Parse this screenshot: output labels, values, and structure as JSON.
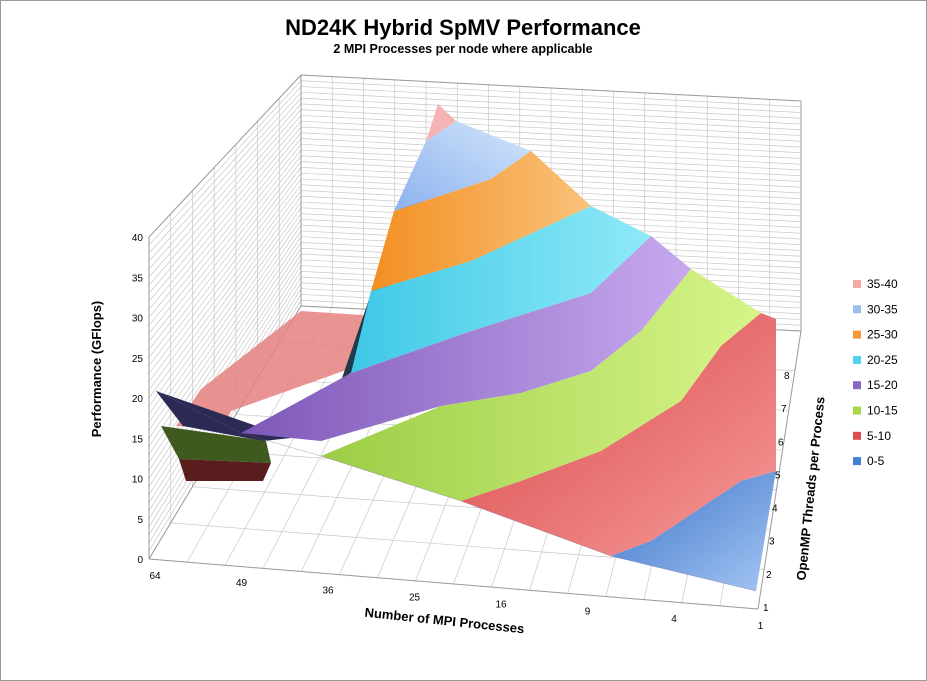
{
  "chart_data": {
    "type": "surface",
    "title": "ND24K Hybrid SpMV Performance",
    "subtitle": "2 MPI Processes per node where applicable",
    "zlabel": "Performance (GFlops)",
    "xlabel": "Number of MPI Processes",
    "ylabel": "OpenMP Threads per Process",
    "zlim": [
      0,
      40
    ],
    "z_ticks": [
      "0",
      "5",
      "10",
      "15",
      "20",
      "25",
      "30",
      "35",
      "40"
    ],
    "x_ticks": [
      "64",
      "49",
      "36",
      "25",
      "16",
      "9",
      "4",
      "1"
    ],
    "y_ticks": [
      "1",
      "2",
      "3",
      "4",
      "5",
      "6",
      "7",
      "8"
    ],
    "grid": true,
    "legend_position": "right",
    "legend": [
      {
        "label": "35-40",
        "color": "#f4a8a8"
      },
      {
        "label": "30-35",
        "color": "#9dbdf0"
      },
      {
        "label": "25-30",
        "color": "#f59a36"
      },
      {
        "label": "20-25",
        "color": "#4fd3ee"
      },
      {
        "label": "15-20",
        "color": "#8a66c4"
      },
      {
        "label": "10-15",
        "color": "#a8d84e"
      },
      {
        "label": "5-10",
        "color": "#e04c4c"
      },
      {
        "label": "0-5",
        "color": "#3f7fd6"
      }
    ],
    "surface_bands": [
      {
        "range": "35-40",
        "color": "#f5b3b5"
      },
      {
        "range": "30-35",
        "color": "#a7c7f2"
      },
      {
        "range": "25-30",
        "color": "#f6a54a"
      },
      {
        "range": "20-25",
        "color": "#6fdaf0"
      },
      {
        "range": "15-20",
        "color": "#9b78d3"
      },
      {
        "range": "10-15",
        "color": "#b6e05a"
      },
      {
        "range": "5-10",
        "color": "#ee6a6a"
      },
      {
        "range": "0-5",
        "color": "#4a86d6"
      }
    ]
  }
}
